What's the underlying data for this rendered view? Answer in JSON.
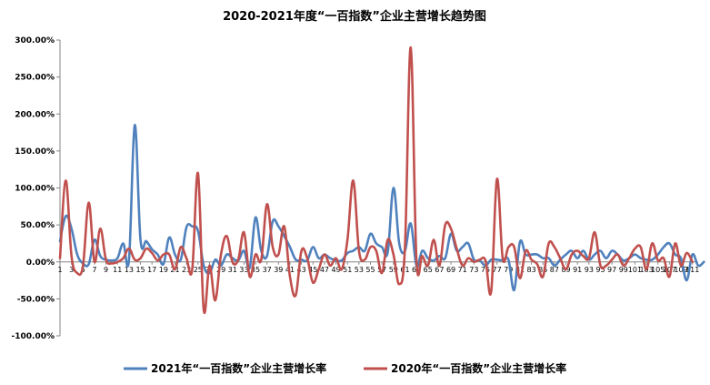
{
  "chart_data": {
    "type": "line",
    "title": "2020-2021年度“一百指数”企业主营增长趋势图",
    "ylim": [
      -100,
      300
    ],
    "y_ticks": [
      -100,
      -50,
      0,
      50,
      100,
      150,
      200,
      250,
      300
    ],
    "y_tick_labels": [
      "-100.00%",
      "-50.00%",
      "0.00%",
      "50.00%",
      "100.00%",
      "150.00%",
      "200.00%",
      "250.00%",
      "300.00%"
    ],
    "x_range": [
      1,
      112
    ],
    "x_tick_labels": [
      "1",
      "3",
      "5",
      "7",
      "9",
      "11",
      "13",
      "15",
      "17",
      "19",
      "21",
      "23",
      "25",
      "27",
      "29",
      "31",
      "33",
      "35",
      "37",
      "39",
      "41",
      "43",
      "45",
      "47",
      "49",
      "51",
      "53",
      "55",
      "57",
      "59",
      "61",
      "63",
      "65",
      "67",
      "69",
      "71",
      "73",
      "75",
      "77",
      "79",
      "81",
      "83",
      "85",
      "87",
      "89",
      "91",
      "93",
      "95",
      "97",
      "99",
      "101",
      "103",
      "105",
      "107",
      "109",
      "111"
    ],
    "grid": false,
    "legend_position": "bottom",
    "series": [
      {
        "name": "2021年“一百指数”企业主营增长率",
        "color": "#4F81BD",
        "values": [
          28,
          62,
          45,
          10,
          -2,
          -3,
          30,
          8,
          3,
          2,
          5,
          25,
          3,
          185,
          30,
          28,
          17,
          10,
          -3,
          33,
          10,
          3,
          47,
          48,
          42,
          -5,
          -15,
          3,
          -5,
          10,
          5,
          2,
          15,
          -8,
          60,
          15,
          8,
          55,
          48,
          35,
          20,
          3,
          3,
          2,
          20,
          5,
          10,
          5,
          2,
          2,
          12,
          15,
          20,
          15,
          38,
          25,
          20,
          13,
          100,
          25,
          15,
          52,
          -5,
          15,
          5,
          2,
          8,
          5,
          38,
          15,
          20,
          25,
          3,
          2,
          -5,
          3,
          3,
          2,
          3,
          -38,
          27,
          10,
          10,
          10,
          5,
          5,
          -5,
          3,
          10,
          15,
          5,
          15,
          3,
          10,
          15,
          5,
          15,
          10,
          2,
          5,
          10,
          5,
          3,
          3,
          10,
          20,
          25,
          10,
          5,
          -25,
          10,
          -5,
          0
        ]
      },
      {
        "name": "2020年“一百指数”企业主营增长率",
        "color": "#C0504D",
        "values": [
          5,
          110,
          8,
          -15,
          -5,
          80,
          0,
          45,
          3,
          -2,
          0,
          5,
          18,
          3,
          5,
          18,
          12,
          2,
          10,
          10,
          -10,
          20,
          5,
          -10,
          120,
          -65,
          -5,
          -52,
          10,
          35,
          0,
          3,
          40,
          -20,
          10,
          3,
          78,
          20,
          10,
          48,
          -20,
          -45,
          15,
          5,
          -28,
          -10,
          10,
          -5,
          5,
          -10,
          30,
          110,
          15,
          3,
          20,
          15,
          -15,
          30,
          10,
          -30,
          20,
          290,
          3,
          8,
          -5,
          30,
          -5,
          50,
          45,
          18,
          -5,
          5,
          0,
          3,
          2,
          -40,
          112,
          5,
          20,
          20,
          -22,
          15,
          3,
          -3,
          -20,
          25,
          20,
          5,
          -10,
          10,
          15,
          8,
          5,
          40,
          -5,
          -5,
          3,
          10,
          -5,
          5,
          18,
          20,
          -10,
          25,
          2,
          5,
          -20,
          25,
          -5,
          12,
          0
        ]
      }
    ]
  }
}
